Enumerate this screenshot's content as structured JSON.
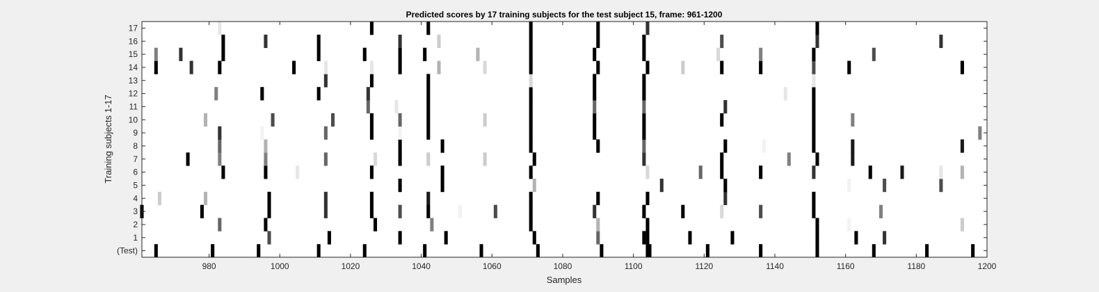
{
  "chart_data": {
    "type": "heatmap",
    "title": "Predicted scores by 17 training subjects for the test subject 15, frame: 961-1200",
    "xlabel": "Samples",
    "ylabel": "Training subjects 1-17",
    "xlim": [
      961,
      1200
    ],
    "xticks": [
      980,
      1000,
      1020,
      1040,
      1060,
      1080,
      1100,
      1120,
      1140,
      1160,
      1180,
      1200
    ],
    "rows": [
      "(Test)",
      "1",
      "2",
      "3",
      "4",
      "5",
      "6",
      "7",
      "8",
      "9",
      "10",
      "11",
      "12",
      "13",
      "14",
      "15",
      "16",
      "17"
    ],
    "colormap": "gray (1 = black, 0 = white)",
    "cells": {
      "(Test)": [
        [
          965,
          1
        ],
        [
          981,
          1
        ],
        [
          994,
          1
        ],
        [
          1011,
          1
        ],
        [
          1024,
          1
        ],
        [
          1041,
          1
        ],
        [
          1057,
          1
        ],
        [
          1073,
          1
        ],
        [
          1091,
          1
        ],
        [
          1104,
          1
        ],
        [
          1104.6,
          1
        ],
        [
          1121,
          1
        ],
        [
          1136,
          1
        ],
        [
          1152,
          1
        ],
        [
          1168,
          1
        ],
        [
          1183,
          1
        ],
        [
          1196,
          1
        ]
      ],
      "1": [
        [
          997,
          0.7
        ],
        [
          1014,
          1
        ],
        [
          1034,
          1
        ],
        [
          1047,
          1
        ],
        [
          1072,
          1
        ],
        [
          1090,
          0.6
        ],
        [
          1103,
          1
        ],
        [
          1104,
          1
        ],
        [
          1116,
          1
        ],
        [
          1128,
          1
        ],
        [
          1152,
          1
        ],
        [
          1163,
          1
        ],
        [
          1171,
          0.8
        ]
      ],
      "2": [
        [
          983,
          0.6
        ],
        [
          996,
          1
        ],
        [
          1027,
          1
        ],
        [
          1043,
          0.5
        ],
        [
          1071,
          1
        ],
        [
          1090,
          0.3
        ],
        [
          1104,
          1
        ],
        [
          1152,
          1
        ],
        [
          1161,
          0.05
        ],
        [
          1193,
          0.2
        ]
      ],
      "3": [
        [
          961,
          1
        ],
        [
          978,
          1
        ],
        [
          997,
          1
        ],
        [
          1013,
          0.8
        ],
        [
          1026,
          1
        ],
        [
          1034,
          0.7
        ],
        [
          1042,
          1
        ],
        [
          1051,
          0.05
        ],
        [
          1061,
          0.7
        ],
        [
          1071,
          1
        ],
        [
          1089,
          0.8
        ],
        [
          1103,
          1
        ],
        [
          1114,
          1
        ],
        [
          1125,
          0.15
        ],
        [
          1136,
          0.7
        ],
        [
          1151,
          1
        ],
        [
          1170,
          0.5
        ]
      ],
      "4": [
        [
          966,
          0.2
        ],
        [
          979,
          0.3
        ],
        [
          997,
          1
        ],
        [
          1013,
          0.8
        ],
        [
          1026,
          1
        ],
        [
          1042,
          0.9
        ],
        [
          1071,
          1
        ],
        [
          1090,
          1
        ],
        [
          1104,
          1
        ],
        [
          1126,
          0.8
        ],
        [
          1151,
          1
        ]
      ],
      "5": [
        [
          1034,
          1
        ],
        [
          1046,
          1
        ],
        [
          1072,
          0.3
        ],
        [
          1108,
          0.8
        ],
        [
          1126,
          1
        ],
        [
          1161,
          0.05
        ],
        [
          1171,
          0.7
        ],
        [
          1187,
          0.7
        ]
      ],
      "6": [
        [
          984,
          1
        ],
        [
          996,
          1
        ],
        [
          1005,
          0.1
        ],
        [
          1026,
          1
        ],
        [
          1046,
          1
        ],
        [
          1071,
          1
        ],
        [
          1104,
          0.15
        ],
        [
          1119,
          0.6
        ],
        [
          1125,
          1
        ],
        [
          1136,
          1
        ],
        [
          1151,
          0.8
        ],
        [
          1167,
          1
        ],
        [
          1176,
          0.9
        ],
        [
          1187,
          0.1
        ],
        [
          1193,
          0.3
        ]
      ],
      "7": [
        [
          974,
          1
        ],
        [
          983,
          0.5
        ],
        [
          996,
          0.5
        ],
        [
          1013,
          0.6
        ],
        [
          1027,
          0.15
        ],
        [
          1034,
          1
        ],
        [
          1042,
          0.2
        ],
        [
          1058,
          0.2
        ],
        [
          1072,
          1
        ],
        [
          1103,
          0.8
        ],
        [
          1125,
          1
        ],
        [
          1144,
          0.5
        ],
        [
          1152,
          1
        ],
        [
          1162,
          0.9
        ]
      ],
      "8": [
        [
          983,
          0.6
        ],
        [
          996,
          0.3
        ],
        [
          1034,
          1
        ],
        [
          1046,
          1
        ],
        [
          1071,
          1
        ],
        [
          1090,
          1
        ],
        [
          1103,
          0.6
        ],
        [
          1126,
          1
        ],
        [
          1137,
          0.05
        ],
        [
          1151,
          1
        ],
        [
          1162,
          0.9
        ],
        [
          1193,
          0.9
        ]
      ],
      "9": [
        [
          983,
          0.8
        ],
        [
          995,
          0.05
        ],
        [
          1013,
          0.6
        ],
        [
          1026,
          1
        ],
        [
          1034,
          0.05
        ],
        [
          1042,
          1
        ],
        [
          1071,
          1
        ],
        [
          1089,
          1
        ],
        [
          1103,
          1
        ],
        [
          1151,
          1
        ],
        [
          1198,
          0.5
        ]
      ],
      "10": [
        [
          979,
          0.3
        ],
        [
          998,
          0.7
        ],
        [
          1015,
          0.7
        ],
        [
          1026,
          1
        ],
        [
          1034,
          0.6
        ],
        [
          1042,
          1
        ],
        [
          1058,
          0.2
        ],
        [
          1071,
          1
        ],
        [
          1089,
          1
        ],
        [
          1103,
          1
        ],
        [
          1125,
          1
        ],
        [
          1151,
          1
        ],
        [
          1162,
          0.5
        ]
      ],
      "11": [
        [
          1025,
          0.6
        ],
        [
          1033,
          0.1
        ],
        [
          1042,
          1
        ],
        [
          1071,
          1
        ],
        [
          1089,
          0.6
        ],
        [
          1103,
          0.6
        ],
        [
          1126,
          0.8
        ],
        [
          1151,
          1
        ]
      ],
      "12": [
        [
          982,
          0.5
        ],
        [
          995,
          1
        ],
        [
          1011,
          1
        ],
        [
          1025,
          0.8
        ],
        [
          1042,
          1
        ],
        [
          1071,
          1
        ],
        [
          1089,
          1
        ],
        [
          1103,
          1
        ],
        [
          1143,
          0.1
        ],
        [
          1151,
          1
        ]
      ],
      "13": [
        [
          1013,
          0.8
        ],
        [
          1026,
          1
        ],
        [
          1042,
          1
        ],
        [
          1071,
          0.15
        ],
        [
          1089,
          1
        ],
        [
          1103,
          1
        ],
        [
          1151,
          0.1
        ]
      ],
      "14": [
        [
          965,
          1
        ],
        [
          975,
          0.8
        ],
        [
          983,
          1
        ],
        [
          1004,
          1
        ],
        [
          1013,
          0.1
        ],
        [
          1026,
          0.1
        ],
        [
          1034,
          1
        ],
        [
          1045,
          0.3
        ],
        [
          1058,
          0.15
        ],
        [
          1071,
          1
        ],
        [
          1090,
          1
        ],
        [
          1104,
          1
        ],
        [
          1114,
          0.2
        ],
        [
          1125,
          1
        ],
        [
          1136,
          1
        ],
        [
          1151,
          0.7
        ],
        [
          1161,
          1
        ],
        [
          1193,
          1
        ]
      ],
      "15": [
        [
          965,
          0.5
        ],
        [
          972,
          0.8
        ],
        [
          984,
          1
        ],
        [
          1011,
          1
        ],
        [
          1024,
          1
        ],
        [
          1034,
          1
        ],
        [
          1041,
          1
        ],
        [
          1056,
          0.3
        ],
        [
          1071,
          1
        ],
        [
          1089,
          1
        ],
        [
          1103,
          1
        ],
        [
          1124,
          0.15
        ],
        [
          1136,
          0.5
        ],
        [
          1151,
          1
        ],
        [
          1168,
          0.7
        ]
      ],
      "16": [
        [
          984,
          1
        ],
        [
          996,
          0.8
        ],
        [
          1011,
          1
        ],
        [
          1034,
          0.8
        ],
        [
          1045,
          0.2
        ],
        [
          1071,
          1
        ],
        [
          1090,
          1
        ],
        [
          1103,
          1
        ],
        [
          1125,
          0.7
        ],
        [
          1152,
          0.8
        ],
        [
          1187,
          0.8
        ]
      ],
      "17": [
        [
          983,
          0.1
        ],
        [
          1026,
          1
        ],
        [
          1042,
          1
        ],
        [
          1071,
          1
        ],
        [
          1090,
          1
        ],
        [
          1104,
          0.8
        ],
        [
          1152,
          1
        ]
      ]
    }
  }
}
